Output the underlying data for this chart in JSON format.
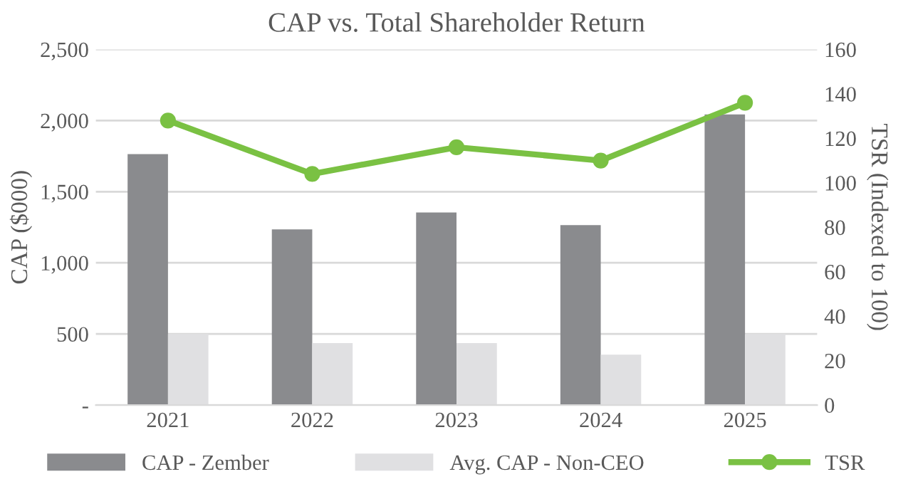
{
  "chart_data": {
    "type": "bar",
    "title": "CAP vs. Total Shareholder Return",
    "ylabel": "CAP ($000)",
    "y2label": "TSR (Indexed to 100)",
    "categories": [
      "2021",
      "2022",
      "2023",
      "2024",
      "2025"
    ],
    "series": [
      {
        "name": "CAP - Zember",
        "color": "#8a8b8e",
        "values": [
          1764,
          1235,
          1354,
          1265,
          2043
        ]
      },
      {
        "name": "Avg. CAP - Non-CEO",
        "color": "#e0e0e2",
        "values": [
          499,
          436,
          436,
          355,
          499
        ]
      },
      {
        "name": "TSR",
        "type": "line",
        "axis": "y2",
        "color": "#7ac143",
        "marker": "circle",
        "values": [
          128,
          104,
          116,
          110,
          136
        ]
      }
    ],
    "ylim": [
      0,
      2500
    ],
    "yticks": [
      {
        "value": 0,
        "label": "-"
      },
      {
        "value": 500,
        "label": "500"
      },
      {
        "value": 1000,
        "label": "1,000"
      },
      {
        "value": 1500,
        "label": "1,500"
      },
      {
        "value": 2000,
        "label": "2,000"
      },
      {
        "value": 2500,
        "label": "2,500"
      }
    ],
    "y2lim": [
      0,
      160
    ],
    "y2ticks": [
      0,
      20,
      40,
      60,
      80,
      100,
      120,
      140,
      160
    ],
    "grid": "y",
    "legend": "bottom"
  }
}
